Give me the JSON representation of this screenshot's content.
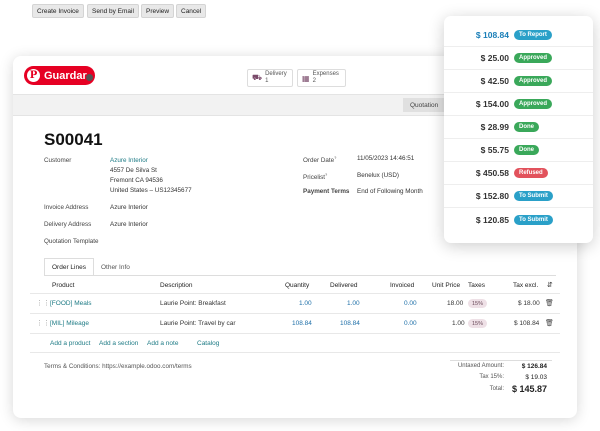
{
  "colors": {
    "pinterest": "#e60023",
    "link": "#1e7b85",
    "number_blue": "#1e6fa8",
    "badge_blue": "#2aa0c8",
    "badge_green": "#3aa85a",
    "badge_red": "#e2525c"
  },
  "pin_button": {
    "label": "Guardar",
    "icon": "pinterest-icon"
  },
  "smart_buttons": [
    {
      "icon": "truck-icon",
      "label": "Delivery",
      "count": "1"
    },
    {
      "icon": "receipt-icon",
      "label": "Expenses",
      "count": "2"
    }
  ],
  "toolbar": {
    "create_invoice": "Create Invoice",
    "send_by_email": "Send by Email",
    "preview": "Preview",
    "cancel": "Cancel",
    "status_step": "Quotation"
  },
  "order": {
    "number": "S00041",
    "customer_label": "Customer",
    "customer_name": "Azure Interior",
    "address_line1": "4557 De Silva St",
    "address_line2": "Fremont CA 94536",
    "address_line3": "United States – US12345677",
    "invoice_address_label": "Invoice Address",
    "invoice_address": "Azure Interior",
    "delivery_address_label": "Delivery Address",
    "delivery_address": "Azure Interior",
    "quotation_template_label": "Quotation Template",
    "order_date_label": "Order Date",
    "order_date_mark": "?",
    "order_date": "11/05/2023 14:46:51",
    "pricelist_label": "Pricelist",
    "pricelist_mark": "?",
    "pricelist": "Benelux (USD)",
    "payment_terms_label": "Payment Terms",
    "payment_terms": "End of Following Month"
  },
  "tabs": [
    "Order Lines",
    "Other Info"
  ],
  "table": {
    "headers": {
      "product": "Product",
      "description": "Description",
      "quantity": "Quantity",
      "delivered": "Delivered",
      "invoiced": "Invoiced",
      "unit_price": "Unit Price",
      "taxes": "Taxes",
      "tax_excl": "Tax excl."
    },
    "rows": [
      {
        "product": "[FOOD] Meals",
        "description": "Laurie Point: Breakfast",
        "quantity": "1.00",
        "delivered": "1.00",
        "invoiced": "0.00",
        "unit_price": "18.00",
        "tax": "15%",
        "subtotal": "$ 18.00"
      },
      {
        "product": "[MIL] Mileage",
        "description": "Laurie Point: Travel by car",
        "quantity": "108.84",
        "delivered": "108.84",
        "invoiced": "0.00",
        "unit_price": "1.00",
        "tax": "15%",
        "subtotal": "$ 108.84"
      }
    ],
    "actions": [
      "Add a product",
      "Add a section",
      "Add a note",
      "Catalog"
    ]
  },
  "terms": "Terms & Conditions: https://example.odoo.com/terms",
  "totals": {
    "untaxed_label": "Untaxed Amount:",
    "untaxed_value": "$ 126.84",
    "tax_label": "Tax 15%:",
    "tax_value": "$ 19.03",
    "total_label": "Total:",
    "total_value": "$ 145.87"
  },
  "expense_statuses": [
    {
      "amount": "$ 108.84",
      "status": "To Report",
      "color": "#2aa0c8",
      "highlight": true
    },
    {
      "amount": "$ 25.00",
      "status": "Approved",
      "color": "#3aa85a"
    },
    {
      "amount": "$ 42.50",
      "status": "Approved",
      "color": "#3aa85a"
    },
    {
      "amount": "$ 154.00",
      "status": "Approved",
      "color": "#3aa85a"
    },
    {
      "amount": "$ 28.99",
      "status": "Done",
      "color": "#3aa85a"
    },
    {
      "amount": "$ 55.75",
      "status": "Done",
      "color": "#3aa85a"
    },
    {
      "amount": "$ 450.58",
      "status": "Refused",
      "color": "#e2525c"
    },
    {
      "amount": "$ 152.80",
      "status": "To Submit",
      "color": "#2aa0c8"
    },
    {
      "amount": "$ 120.85",
      "status": "To Submit",
      "color": "#2aa0c8"
    }
  ]
}
